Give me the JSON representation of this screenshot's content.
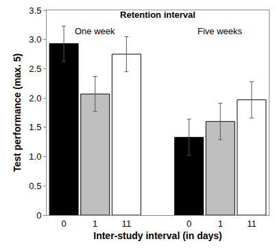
{
  "chart_data": {
    "type": "bar",
    "title": "Retention interval",
    "x_label": "Inter-study interval (in days)",
    "y_label": "Test performance (max. 5)",
    "categories": [
      "0",
      "1",
      "11",
      null,
      "0",
      "1",
      "11"
    ],
    "values": [
      2.93,
      2.07,
      2.75,
      null,
      1.33,
      1.6,
      1.97
    ],
    "errors": [
      0.3,
      0.3,
      0.3,
      null,
      0.31,
      0.31,
      0.31
    ],
    "colors": [
      "#000000",
      "#bfbfbf",
      "#ffffff",
      null,
      "#000000",
      "#bfbfbf",
      "#ffffff"
    ],
    "annotations": [
      {
        "text": "One week",
        "x": 1
      },
      {
        "text": "Five weeks",
        "x": 5
      }
    ],
    "ylim": [
      0,
      3.5
    ],
    "yticks": [
      0,
      0.5,
      {
        "value": 1,
        "label": "1.0"
      },
      1.5,
      {
        "value": 2,
        "label": "2.0"
      },
      2.5,
      {
        "value": 3,
        "label": "3.0"
      },
      3.5
    ],
    "grid": false
  }
}
